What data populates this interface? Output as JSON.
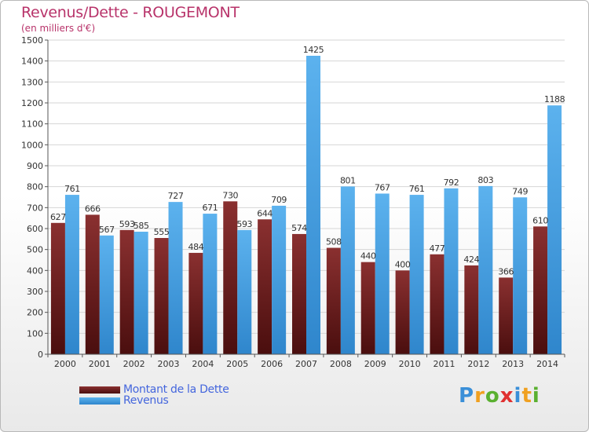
{
  "header": {
    "title": "Revenus/Dette - ROUGEMONT",
    "subtitle": "(en milliers d'€)"
  },
  "legend": {
    "debt_label": "Montant de la Dette",
    "revenue_label": "Revenus"
  },
  "logo": {
    "text": "Proxiti",
    "letters": [
      "P",
      "r",
      "o",
      "x",
      "i",
      "t",
      "i"
    ],
    "colors": [
      "#3a8fd8",
      "#f0a020",
      "#5ab030",
      "#e03030",
      "#3a8fd8",
      "#f0a020",
      "#5ab030"
    ]
  },
  "colors": {
    "debt": "#6e1e1e",
    "debt_light": "#8a3030",
    "revenue": "#4aa3e6",
    "revenue_light": "#6bbcf2",
    "title": "#b8336a",
    "legend_text": "#4466dd"
  },
  "chart_data": {
    "type": "bar",
    "title": "Revenus/Dette - ROUGEMONT",
    "ylabel": "(en milliers d'€)",
    "xlabel": "",
    "ylim": [
      0,
      1500
    ],
    "yticks": [
      0,
      100,
      200,
      300,
      400,
      500,
      600,
      700,
      800,
      900,
      1000,
      1100,
      1200,
      1300,
      1400,
      1500
    ],
    "grid": true,
    "legend_position": "bottom-left",
    "categories": [
      "2000",
      "2001",
      "2002",
      "2003",
      "2004",
      "2005",
      "2006",
      "2007",
      "2008",
      "2009",
      "2010",
      "2011",
      "2012",
      "2013",
      "2014"
    ],
    "series": [
      {
        "name": "Montant de la Dette",
        "values": [
          627,
          666,
          593,
          555,
          484,
          730,
          644,
          574,
          508,
          440,
          400,
          477,
          424,
          366,
          610
        ]
      },
      {
        "name": "Revenus",
        "values": [
          761,
          567,
          585,
          727,
          671,
          593,
          709,
          1425,
          801,
          767,
          761,
          792,
          803,
          749,
          1188
        ]
      }
    ]
  }
}
